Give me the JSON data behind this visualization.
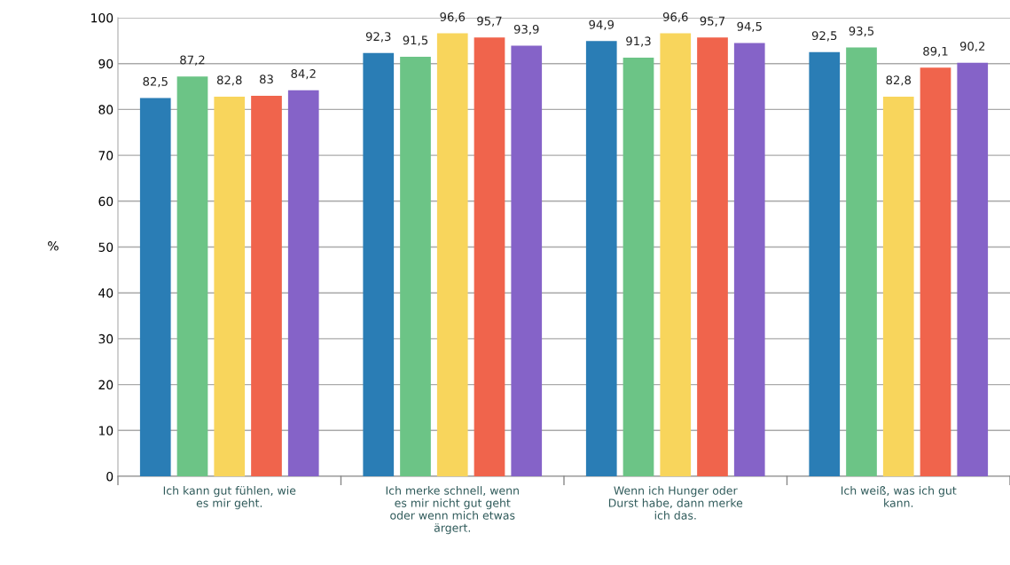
{
  "chart_data": {
    "type": "bar",
    "ylabel": "%",
    "categories": [
      "Ich kann gut fühlen, wie\nes mir geht.",
      "Ich merke schnell, wenn\nes mir nicht gut geht\noder wenn mich etwas\närgert.",
      "Wenn ich Hunger oder\nDurst habe, dann merke\nich das.",
      "Ich weiß, was ich gut\nkann."
    ],
    "series": [
      {
        "color": "#2a7db5",
        "values": [
          82.5,
          92.3,
          94.9,
          92.5
        ],
        "value_labels": [
          "82,5",
          "92,3",
          "94,9",
          "92,5"
        ]
      },
      {
        "color": "#6cc486",
        "values": [
          87.2,
          91.5,
          91.3,
          93.5
        ],
        "value_labels": [
          "87,2",
          "91,5",
          "91,3",
          "93,5"
        ]
      },
      {
        "color": "#f8d55c",
        "values": [
          82.8,
          96.6,
          96.6,
          82.8
        ],
        "value_labels": [
          "82,8",
          "96,6",
          "96,6",
          "82,8"
        ]
      },
      {
        "color": "#f0644c",
        "values": [
          83,
          95.7,
          95.7,
          89.1
        ],
        "value_labels": [
          "83",
          "95,7",
          "95,7",
          "89,1"
        ]
      },
      {
        "color": "#8563c8",
        "values": [
          84.2,
          93.9,
          94.5,
          90.2
        ],
        "value_labels": [
          "84,2",
          "93,9",
          "94,5",
          "90,2"
        ]
      }
    ],
    "ylim": [
      0,
      100
    ],
    "yticks": [
      0,
      10,
      20,
      30,
      40,
      50,
      60,
      70,
      80,
      90,
      100
    ],
    "grid": "y",
    "legend": false
  }
}
